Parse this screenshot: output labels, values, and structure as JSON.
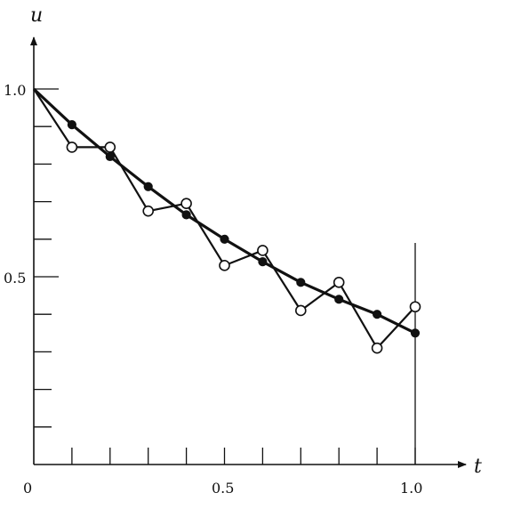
{
  "chart_data": {
    "type": "line",
    "xlabel": "t",
    "ylabel": "u",
    "xlim": [
      0,
      1.15
    ],
    "ylim": [
      0,
      1.08
    ],
    "x_tick_values": [
      0.1,
      0.2,
      0.3,
      0.4,
      0.5,
      0.6,
      0.7,
      0.8,
      0.9,
      1.0
    ],
    "y_tick_values": [
      0.1,
      0.2,
      0.3,
      0.4,
      0.5,
      0.6,
      0.7,
      0.8,
      0.9,
      1.0
    ],
    "tick_labels": {
      "origin": "0",
      "x_half": "0.5",
      "x_one": "1.0",
      "y_half": "0.5",
      "y_one": "1.0"
    },
    "vertical_line": {
      "x": 1.0,
      "y_from": 0,
      "y_to": 0.59
    },
    "series": [
      {
        "marker": "open",
        "color": "#111111",
        "x": [
          0,
          0.1,
          0.2,
          0.3,
          0.4,
          0.5,
          0.6,
          0.7,
          0.8,
          0.9,
          1.0
        ],
        "y": [
          1.0,
          0.845,
          0.845,
          0.675,
          0.695,
          0.53,
          0.57,
          0.41,
          0.485,
          0.31,
          0.42
        ]
      },
      {
        "marker": "filled",
        "color": "#111111",
        "x": [
          0,
          0.1,
          0.2,
          0.3,
          0.4,
          0.5,
          0.6,
          0.7,
          0.8,
          0.9,
          1.0
        ],
        "y": [
          1.0,
          0.905,
          0.82,
          0.74,
          0.665,
          0.6,
          0.54,
          0.485,
          0.44,
          0.4,
          0.35
        ]
      }
    ]
  }
}
